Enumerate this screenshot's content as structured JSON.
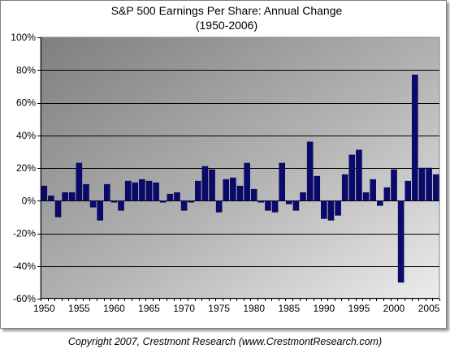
{
  "chart_data": {
    "type": "bar",
    "title": "S&P 500 Earnings Per Share: Annual Change",
    "subtitle": "(1950-2006)",
    "xlabel": "",
    "ylabel": "",
    "x": [
      1950,
      1951,
      1952,
      1953,
      1954,
      1955,
      1956,
      1957,
      1958,
      1959,
      1960,
      1961,
      1962,
      1963,
      1964,
      1965,
      1966,
      1967,
      1968,
      1969,
      1970,
      1971,
      1972,
      1973,
      1974,
      1975,
      1976,
      1977,
      1978,
      1979,
      1980,
      1981,
      1982,
      1983,
      1984,
      1985,
      1986,
      1987,
      1988,
      1989,
      1990,
      1991,
      1992,
      1993,
      1994,
      1995,
      1996,
      1997,
      1998,
      1999,
      2000,
      2001,
      2002,
      2003,
      2004,
      2005,
      2006
    ],
    "values": [
      9,
      3,
      -10,
      5,
      5,
      23,
      10,
      -4,
      -12,
      10,
      -1,
      -6,
      12,
      11,
      13,
      12,
      11,
      -1,
      4,
      5,
      -6,
      -1,
      12,
      21,
      19,
      -7,
      13,
      14,
      9,
      23,
      7,
      -1,
      -6,
      -7,
      23,
      -2,
      -6,
      5,
      36,
      15,
      -11,
      -12,
      -9,
      16,
      28,
      31,
      5,
      13,
      -3,
      8,
      19,
      -50,
      12,
      77,
      20,
      20,
      16
    ],
    "ylim": [
      -60,
      100
    ],
    "y_ticks": [
      "100%",
      "80%",
      "60%",
      "40%",
      "20%",
      "0%",
      "-20%",
      "-40%",
      "-60%"
    ],
    "y_tick_values": [
      100,
      80,
      60,
      40,
      20,
      0,
      -20,
      -40,
      -60
    ],
    "x_ticks": [
      "1950",
      "1955",
      "1960",
      "1965",
      "1970",
      "1975",
      "1980",
      "1985",
      "1990",
      "1995",
      "2000",
      "2005"
    ],
    "x_tick_values": [
      1950,
      1955,
      1960,
      1965,
      1970,
      1975,
      1980,
      1985,
      1990,
      1995,
      2000,
      2005
    ],
    "grid": true,
    "legend": "none",
    "bar_color": "#0a0a6e"
  },
  "footer": {
    "copyright": "Copyright 2007, Crestmont Research (www.CrestmontResearch.com)"
  }
}
